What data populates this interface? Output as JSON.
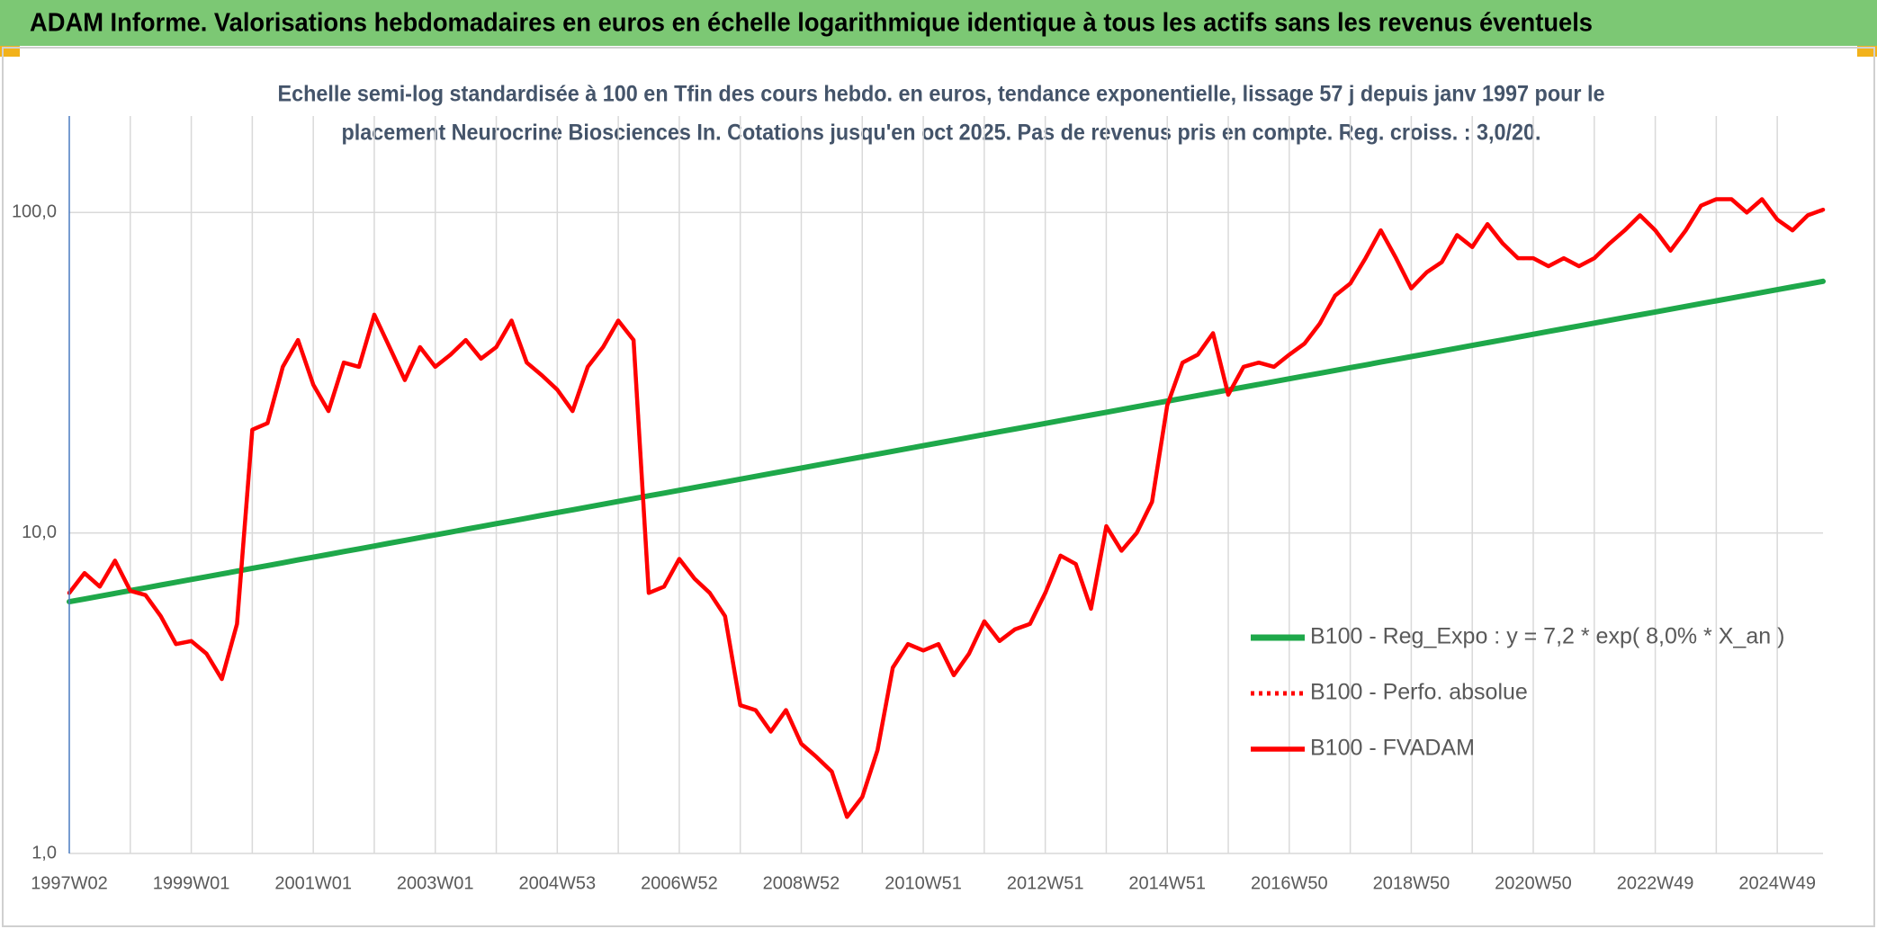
{
  "header": {
    "title": "ADAM Informe. Valorisations hebdomadaires en euros en échelle logarithmique identique à tous les actifs sans les revenus éventuels"
  },
  "chart_data": {
    "type": "line",
    "subtitle": [
      "Echelle semi-log standardisée à 100 en Tfin des cours hebdo. en euros, tendance exponentielle, lissage 57 j depuis janv 1997 pour le",
      "placement Neurocrine Biosciences In. Cotations jusqu'en oct 2025. Pas de revenus pris en compte. Reg. croiss. : 3,0/20."
    ],
    "categories": [
      "1997W02",
      null,
      null,
      null,
      null,
      null,
      null,
      null,
      "1999W01",
      null,
      null,
      null,
      null,
      null,
      null,
      null,
      "2001W01",
      null,
      null,
      null,
      null,
      null,
      null,
      null,
      "2003W01",
      null,
      null,
      null,
      null,
      null,
      null,
      null,
      "2004W53",
      null,
      null,
      null,
      null,
      null,
      null,
      null,
      "2006W52",
      null,
      null,
      null,
      null,
      null,
      null,
      null,
      "2008W52",
      null,
      null,
      null,
      null,
      null,
      null,
      null,
      "2010W51",
      null,
      null,
      null,
      null,
      null,
      null,
      null,
      "2012W51",
      null,
      null,
      null,
      null,
      null,
      null,
      null,
      "2014W51",
      null,
      null,
      null,
      null,
      null,
      null,
      null,
      "2016W50",
      null,
      null,
      null,
      null,
      null,
      null,
      null,
      "2018W50",
      null,
      null,
      null,
      null,
      null,
      null,
      null,
      "2020W50",
      null,
      null,
      null,
      null,
      null,
      null,
      null,
      "2022W49",
      null,
      null,
      null,
      null,
      null,
      null,
      null,
      "2024W49",
      null,
      null,
      null
    ],
    "series": [
      {
        "name": "B100 - Reg_Expo : y = 7,2 * exp( 8,0% *  X_an )",
        "color": "#1ea84a",
        "style": "solid",
        "width": 6,
        "values": [
          6.1,
          6.22,
          6.35,
          6.48,
          6.61,
          6.74,
          6.88,
          7.02,
          7.16,
          7.3,
          7.45,
          7.6,
          7.76,
          7.91,
          8.07,
          8.24,
          8.4,
          8.57,
          8.75,
          8.92,
          9.1,
          9.29,
          9.48,
          9.67,
          9.86,
          10.06,
          10.27,
          10.48,
          10.69,
          10.9,
          11.12,
          11.35,
          11.58,
          11.81,
          12.05,
          12.29,
          12.54,
          12.8,
          13.06,
          13.32,
          13.59,
          13.86,
          14.14,
          14.43,
          14.72,
          15.02,
          15.32,
          15.63,
          15.95,
          16.27,
          16.6,
          16.94,
          17.28,
          17.63,
          17.99,
          18.35,
          18.72,
          19.1,
          19.49,
          19.88,
          20.28,
          20.69,
          21.11,
          21.54,
          21.97,
          22.42,
          22.87,
          23.33,
          23.8,
          24.28,
          24.78,
          25.28,
          25.79,
          26.31,
          26.84,
          27.39,
          27.94,
          28.5,
          29.08,
          29.67,
          30.27,
          30.88,
          31.5,
          32.14,
          32.79,
          33.45,
          34.13,
          34.82,
          35.52,
          36.24,
          36.97,
          37.72,
          38.48,
          39.26,
          40.05,
          40.86,
          41.69,
          42.53,
          43.39,
          44.27,
          45.16,
          46.08,
          47.01,
          47.96,
          48.93,
          49.92,
          50.93,
          51.96,
          53.01,
          54.08,
          55.17,
          56.29,
          57.43,
          58.59,
          59.77,
          61.0
        ]
      },
      {
        "name": "B100 - Perfo. absolue",
        "color": "#ff0000",
        "style": "dotted",
        "width": 4,
        "values": [
          6.5,
          7.5,
          6.8,
          8.2,
          6.6,
          6.4,
          5.5,
          4.5,
          4.6,
          4.2,
          3.5,
          5.2,
          21,
          22,
          33,
          40,
          29,
          24,
          34,
          33,
          48,
          38,
          30,
          38,
          33,
          36,
          40,
          35,
          38,
          46,
          34,
          31,
          28,
          24,
          33,
          38,
          46,
          40,
          6.5,
          6.8,
          8.3,
          7.2,
          6.5,
          5.5,
          2.9,
          2.8,
          2.4,
          2.8,
          2.2,
          2.0,
          1.8,
          1.3,
          1.5,
          2.1,
          3.8,
          4.5,
          4.3,
          4.5,
          3.6,
          4.2,
          5.3,
          4.6,
          5.0,
          5.2,
          6.5,
          8.5,
          8.0,
          5.8,
          10.5,
          8.8,
          10,
          12.5,
          25,
          34,
          36,
          42,
          27,
          33,
          34,
          33,
          36,
          39,
          45,
          55,
          60,
          72,
          88,
          72,
          58,
          65,
          70,
          85,
          78,
          92,
          80,
          72,
          72,
          68,
          72,
          68,
          72,
          80,
          88,
          98,
          88,
          76,
          88,
          105,
          110,
          110,
          100,
          110,
          95,
          88,
          98,
          102
        ]
      },
      {
        "name": "B100 - FVADAM",
        "color": "#ff0000",
        "style": "solid",
        "width": 4.5,
        "values": [
          6.5,
          7.5,
          6.8,
          8.2,
          6.6,
          6.4,
          5.5,
          4.5,
          4.6,
          4.2,
          3.5,
          5.2,
          21,
          22,
          33,
          40,
          29,
          24,
          34,
          33,
          48,
          38,
          30,
          38,
          33,
          36,
          40,
          35,
          38,
          46,
          34,
          31,
          28,
          24,
          33,
          38,
          46,
          40,
          6.5,
          6.8,
          8.3,
          7.2,
          6.5,
          5.5,
          2.9,
          2.8,
          2.4,
          2.8,
          2.2,
          2.0,
          1.8,
          1.3,
          1.5,
          2.1,
          3.8,
          4.5,
          4.3,
          4.5,
          3.6,
          4.2,
          5.3,
          4.6,
          5.0,
          5.2,
          6.5,
          8.5,
          8.0,
          5.8,
          10.5,
          8.8,
          10,
          12.5,
          25,
          34,
          36,
          42,
          27,
          33,
          34,
          33,
          36,
          39,
          45,
          55,
          60,
          72,
          88,
          72,
          58,
          65,
          70,
          85,
          78,
          92,
          80,
          72,
          72,
          68,
          72,
          68,
          72,
          80,
          88,
          98,
          88,
          76,
          88,
          105,
          110,
          110,
          100,
          110,
          95,
          88,
          98,
          102
        ]
      }
    ],
    "ylim": [
      1,
      200
    ],
    "log_y": true,
    "yticks": [
      {
        "value": 1,
        "label": "1,0"
      },
      {
        "value": 10,
        "label": "10,0"
      },
      {
        "value": 100,
        "label": "100,0"
      }
    ],
    "grid": true,
    "legend": "right"
  }
}
